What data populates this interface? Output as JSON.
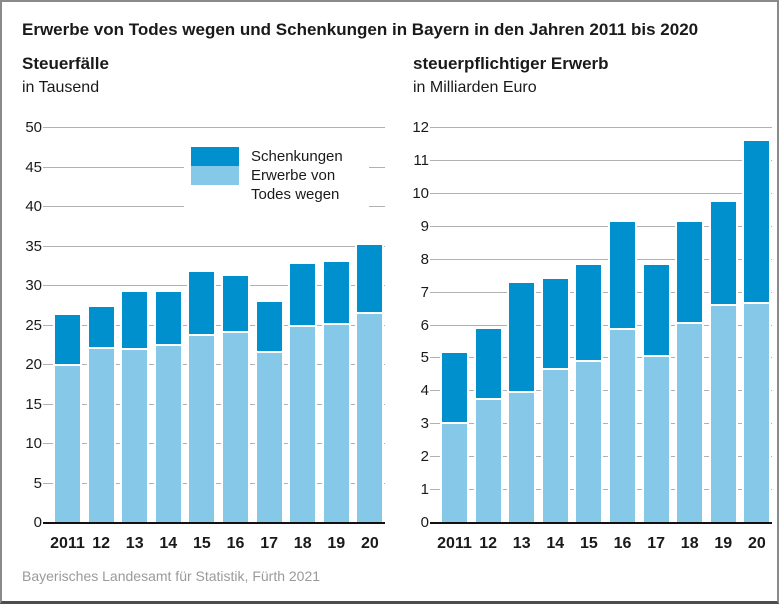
{
  "title": "Erwerbe von Todes wegen und Schenkungen in Bayern in den Jahren 2011 bis 2020",
  "source": "Bayerisches Landesamt für Statistik, Fürth 2021",
  "colors": {
    "schenkungen": "#0090CE",
    "erwerbe": "#86C8E8",
    "gridline": "#b1b1b1",
    "axis": "#111111",
    "text": "#1a1a1a",
    "source_text": "#9a9a9a"
  },
  "legend": {
    "items": [
      {
        "label": "Schenkungen",
        "color": "#0090CE"
      },
      {
        "label": "Erwerbe von Todes wegen",
        "color": "#86C8E8"
      }
    ]
  },
  "chart_data": [
    {
      "type": "bar",
      "stacked": true,
      "title": "Steuerfälle",
      "unit_label": "in Tausend",
      "categories": [
        "2011",
        "12",
        "13",
        "14",
        "15",
        "16",
        "17",
        "18",
        "19",
        "20"
      ],
      "series": [
        {
          "name": "Schenkungen",
          "values": [
            6.4,
            5.4,
            7.3,
            6.9,
            8.1,
            7.2,
            6.5,
            8.0,
            8.0,
            8.7
          ]
        },
        {
          "name": "Erwerbe von Todes wegen",
          "values": [
            19.9,
            22.0,
            21.9,
            22.4,
            23.7,
            24.1,
            21.5,
            24.8,
            25.1,
            26.5
          ]
        }
      ],
      "totals": [
        26.3,
        27.4,
        29.2,
        29.3,
        31.8,
        31.3,
        28.0,
        32.8,
        33.1,
        35.2
      ],
      "ylim": [
        0,
        50
      ],
      "ytick_step": 5,
      "grid": true,
      "legend_position": "top-left-inside"
    },
    {
      "type": "bar",
      "stacked": true,
      "title": "steuerpflichtiger Erwerb",
      "unit_label": "in Milliarden Euro",
      "categories": [
        "2011",
        "12",
        "13",
        "14",
        "15",
        "16",
        "17",
        "18",
        "19",
        "20"
      ],
      "series": [
        {
          "name": "Schenkungen",
          "values": [
            2.15,
            2.15,
            3.35,
            2.75,
            2.95,
            3.3,
            2.8,
            3.1,
            3.15,
            4.95
          ]
        },
        {
          "name": "Erwerbe von Todes wegen",
          "values": [
            3.0,
            3.75,
            3.95,
            4.65,
            4.9,
            5.85,
            5.05,
            6.05,
            6.6,
            6.65
          ]
        }
      ],
      "totals": [
        5.15,
        5.9,
        7.3,
        7.4,
        7.85,
        9.15,
        7.85,
        9.15,
        9.75,
        11.6
      ],
      "ylim": [
        0,
        12
      ],
      "ytick_step": 1,
      "grid": true,
      "legend_position": "none"
    }
  ]
}
